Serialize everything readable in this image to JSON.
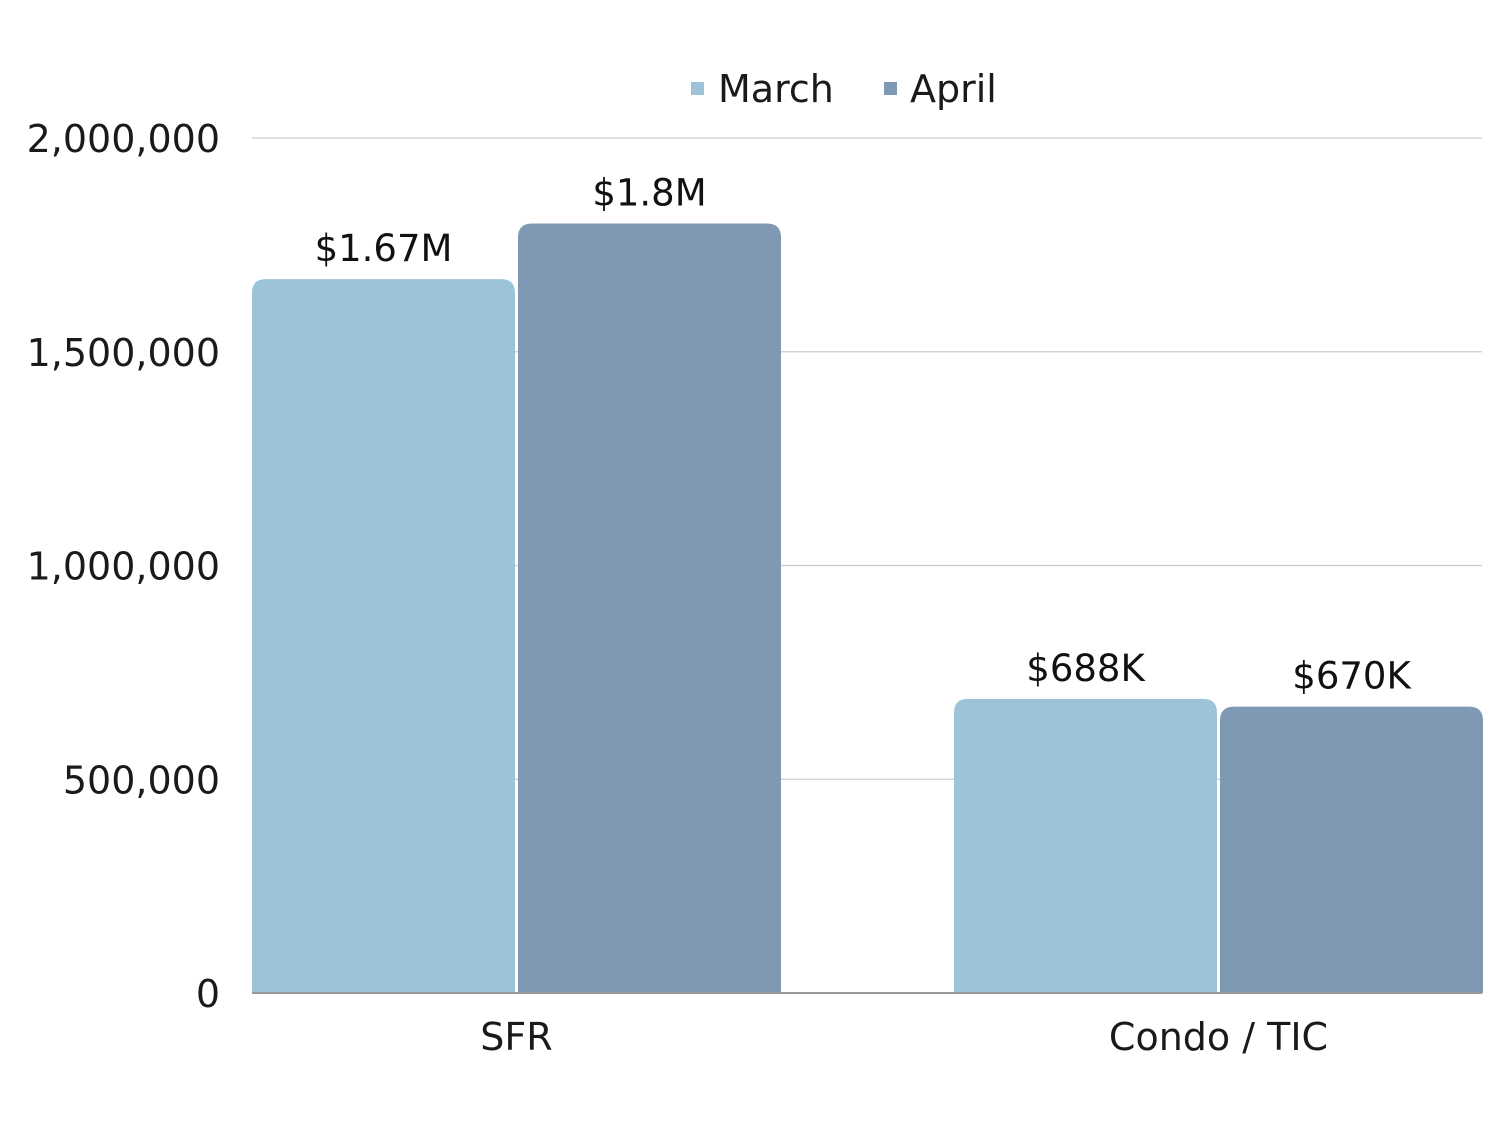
{
  "chart_data": {
    "type": "bar",
    "title": "",
    "xlabel": "",
    "ylabel": "",
    "categories": [
      "SFR",
      "Condo / TIC"
    ],
    "series": [
      {
        "name": "March",
        "color": "#9dc3d8",
        "values": [
          1670000,
          688000
        ],
        "labels": [
          "$1.67M",
          "$688K"
        ]
      },
      {
        "name": "April",
        "color": "#7f98b4",
        "values": [
          1800000,
          670000
        ],
        "labels": [
          "$1.8M",
          "$670K"
        ]
      }
    ],
    "ylim": [
      0,
      2000000
    ],
    "yticks": [
      0,
      500000,
      1000000,
      1500000,
      2000000
    ],
    "ytick_labels": [
      "0",
      "500,000",
      "1,000,000",
      "1,500,000",
      "2,000,000"
    ],
    "grid": true,
    "legend_position": "top-center",
    "colors": {
      "gridline": "#cccccc",
      "axis": "#999999"
    }
  }
}
